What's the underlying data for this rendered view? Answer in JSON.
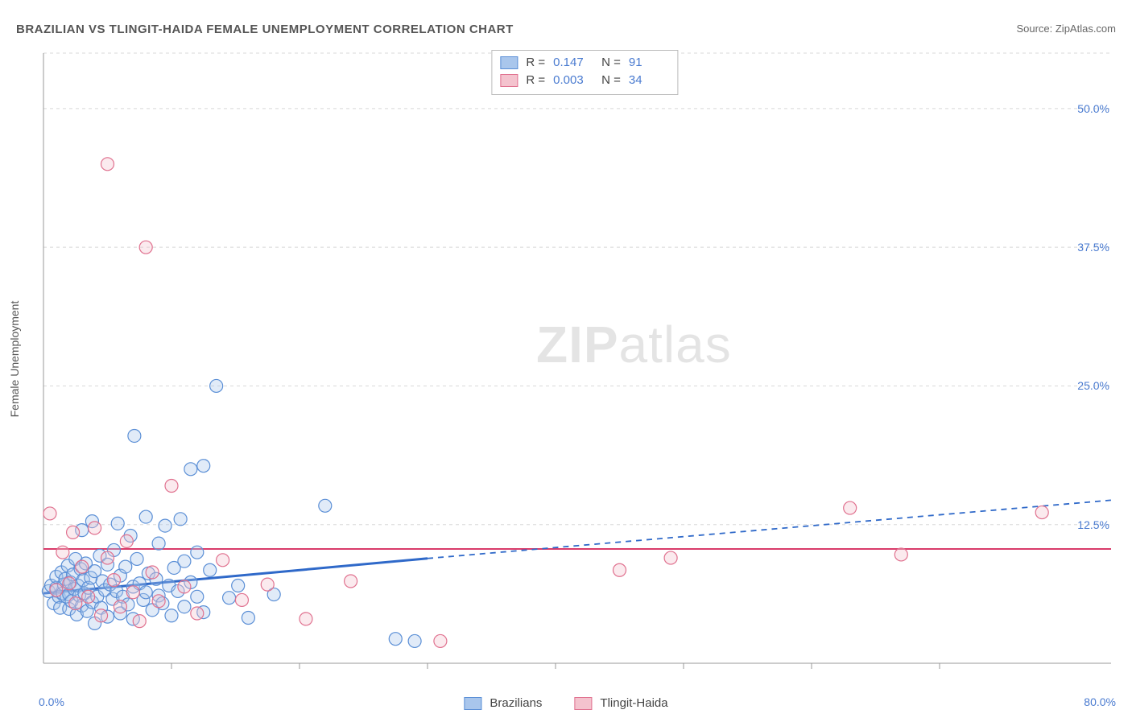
{
  "title": "BRAZILIAN VS TLINGIT-HAIDA FEMALE UNEMPLOYMENT CORRELATION CHART",
  "source_prefix": "Source: ",
  "source_link": "ZipAtlas.com",
  "y_axis_label": "Female Unemployment",
  "watermark_bold": "ZIP",
  "watermark_light": "atlas",
  "chart": {
    "type": "scatter",
    "xlim": [
      0,
      80
    ],
    "ylim": [
      0,
      55
    ],
    "x_min_label": "0.0%",
    "x_max_label": "80.0%",
    "y_ticks": [
      12.5,
      25.0,
      37.5,
      50.0
    ],
    "y_tick_labels": [
      "12.5%",
      "25.0%",
      "37.5%",
      "50.0%"
    ],
    "x_minor_ticks": [
      10,
      20,
      30,
      40,
      50,
      60,
      70
    ],
    "grid_color": "#d8d8d8",
    "axis_color": "#999999",
    "background_color": "#ffffff",
    "marker_radius": 8,
    "marker_stroke_width": 1.2,
    "marker_fill_opacity": 0.35,
    "series": [
      {
        "name": "Brazilians",
        "fill": "#a9c6ec",
        "stroke": "#5b8fd6",
        "r_label": "R  =",
        "r_value": "0.147",
        "n_label": "N  =",
        "n_value": "91",
        "trend": {
          "slope": 0.105,
          "intercept": 6.3,
          "solid_until_x": 30,
          "color": "#2f69c9",
          "width": 3,
          "dash": "7 6"
        },
        "points": [
          [
            0.4,
            6.5
          ],
          [
            0.6,
            7.0
          ],
          [
            0.8,
            5.4
          ],
          [
            1.0,
            6.8
          ],
          [
            1.0,
            7.8
          ],
          [
            1.2,
            6.0
          ],
          [
            1.3,
            5.0
          ],
          [
            1.4,
            8.2
          ],
          [
            1.5,
            6.3
          ],
          [
            1.6,
            7.1
          ],
          [
            1.7,
            7.6
          ],
          [
            1.8,
            6.0
          ],
          [
            1.9,
            8.8
          ],
          [
            2.0,
            4.9
          ],
          [
            2.0,
            6.2
          ],
          [
            2.1,
            7.3
          ],
          [
            2.2,
            5.6
          ],
          [
            2.3,
            8.0
          ],
          [
            2.4,
            6.7
          ],
          [
            2.5,
            9.4
          ],
          [
            2.6,
            4.4
          ],
          [
            2.7,
            7.0
          ],
          [
            2.8,
            6.1
          ],
          [
            2.9,
            8.5
          ],
          [
            3.0,
            5.2
          ],
          [
            3.0,
            12.0
          ],
          [
            3.1,
            7.5
          ],
          [
            3.2,
            6.3
          ],
          [
            3.3,
            9.0
          ],
          [
            3.4,
            4.7
          ],
          [
            3.5,
            6.8
          ],
          [
            3.7,
            7.7
          ],
          [
            3.8,
            5.5
          ],
          [
            3.8,
            12.8
          ],
          [
            4.0,
            8.3
          ],
          [
            4.0,
            3.6
          ],
          [
            4.2,
            6.0
          ],
          [
            4.4,
            9.7
          ],
          [
            4.5,
            5.0
          ],
          [
            4.6,
            7.4
          ],
          [
            4.8,
            6.6
          ],
          [
            5.0,
            4.2
          ],
          [
            5.0,
            8.9
          ],
          [
            5.2,
            7.1
          ],
          [
            5.4,
            5.8
          ],
          [
            5.5,
            10.2
          ],
          [
            5.7,
            6.5
          ],
          [
            5.8,
            12.6
          ],
          [
            6.0,
            4.5
          ],
          [
            6.0,
            7.9
          ],
          [
            6.2,
            6.0
          ],
          [
            6.4,
            8.7
          ],
          [
            6.6,
            5.3
          ],
          [
            6.8,
            11.5
          ],
          [
            7.0,
            6.9
          ],
          [
            7.0,
            4.0
          ],
          [
            7.1,
            20.5
          ],
          [
            7.3,
            9.4
          ],
          [
            7.5,
            7.2
          ],
          [
            7.8,
            5.7
          ],
          [
            8.0,
            6.4
          ],
          [
            8.0,
            13.2
          ],
          [
            8.2,
            8.1
          ],
          [
            8.5,
            4.8
          ],
          [
            8.8,
            7.6
          ],
          [
            9.0,
            6.1
          ],
          [
            9.0,
            10.8
          ],
          [
            9.3,
            5.4
          ],
          [
            9.5,
            12.4
          ],
          [
            9.8,
            7.0
          ],
          [
            10.0,
            4.3
          ],
          [
            10.2,
            8.6
          ],
          [
            10.5,
            6.5
          ],
          [
            10.7,
            13.0
          ],
          [
            11.0,
            5.1
          ],
          [
            11.0,
            9.2
          ],
          [
            11.5,
            7.3
          ],
          [
            11.5,
            17.5
          ],
          [
            12.0,
            6.0
          ],
          [
            12.0,
            10.0
          ],
          [
            12.5,
            4.6
          ],
          [
            12.5,
            17.8
          ],
          [
            13.0,
            8.4
          ],
          [
            13.5,
            25.0
          ],
          [
            14.5,
            5.9
          ],
          [
            15.2,
            7.0
          ],
          [
            16.0,
            4.1
          ],
          [
            18.0,
            6.2
          ],
          [
            22.0,
            14.2
          ],
          [
            27.5,
            2.2
          ],
          [
            29.0,
            2.0
          ]
        ]
      },
      {
        "name": "Tlingit-Haida",
        "fill": "#f4c3ce",
        "stroke": "#e0718f",
        "r_label": "R  =",
        "r_value": "0.003",
        "n_label": "N  =",
        "n_value": "34",
        "trend": {
          "slope": 0.0,
          "intercept": 10.3,
          "solid_until_x": 80,
          "color": "#d93b6a",
          "width": 2,
          "dash": ""
        },
        "points": [
          [
            0.5,
            13.5
          ],
          [
            1.0,
            6.6
          ],
          [
            1.5,
            10.0
          ],
          [
            2.0,
            7.2
          ],
          [
            2.3,
            11.8
          ],
          [
            2.5,
            5.4
          ],
          [
            3.0,
            8.7
          ],
          [
            3.5,
            6.0
          ],
          [
            4.0,
            12.2
          ],
          [
            4.5,
            4.3
          ],
          [
            5.0,
            9.5
          ],
          [
            5.0,
            45.0
          ],
          [
            5.5,
            7.5
          ],
          [
            6.0,
            5.1
          ],
          [
            6.5,
            11.0
          ],
          [
            7.0,
            6.4
          ],
          [
            7.5,
            3.8
          ],
          [
            8.0,
            37.5
          ],
          [
            8.5,
            8.2
          ],
          [
            9.0,
            5.6
          ],
          [
            10.0,
            16.0
          ],
          [
            11.0,
            6.9
          ],
          [
            12.0,
            4.5
          ],
          [
            14.0,
            9.3
          ],
          [
            15.5,
            5.7
          ],
          [
            17.5,
            7.1
          ],
          [
            20.5,
            4.0
          ],
          [
            24.0,
            7.4
          ],
          [
            31.0,
            2.0
          ],
          [
            45.0,
            8.4
          ],
          [
            49.0,
            9.5
          ],
          [
            63.0,
            14.0
          ],
          [
            67.0,
            9.8
          ],
          [
            78.0,
            13.6
          ]
        ]
      }
    ]
  },
  "series_legend": [
    {
      "label": "Brazilians",
      "fill": "#a9c6ec",
      "stroke": "#5b8fd6"
    },
    {
      "label": "Tlingit-Haida",
      "fill": "#f4c3ce",
      "stroke": "#e0718f"
    }
  ]
}
